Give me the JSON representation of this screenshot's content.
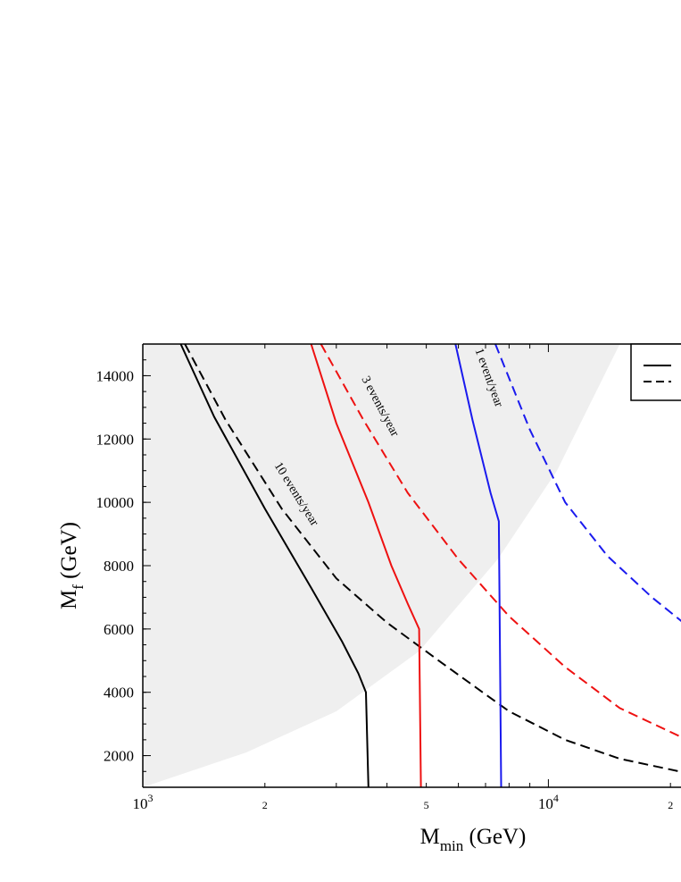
{
  "chart_data": {
    "type": "line",
    "xlabel": "M",
    "xlabel_sub": "min",
    "xlabel_unit": " (GeV)",
    "ylabel": "M",
    "ylabel_sub": "f",
    "ylabel_unit": " (GeV)",
    "x_scale": "log",
    "xlim": [
      1000,
      22000
    ],
    "ylim": [
      1000,
      15000
    ],
    "x_ticks": [
      {
        "value": 1000,
        "base": "10",
        "exp": "3"
      },
      {
        "value": 2000,
        "label": "2"
      },
      {
        "value": 5000,
        "label": "5"
      },
      {
        "value": 10000,
        "base": "10",
        "exp": "4"
      },
      {
        "value": 20000,
        "label": "2"
      }
    ],
    "y_ticks": [
      2000,
      4000,
      6000,
      8000,
      10000,
      12000,
      14000
    ],
    "grid": false,
    "legend": {
      "placement": "top-right",
      "entries": [
        {
          "style": "solid",
          "label": ""
        },
        {
          "style": "dashed",
          "label": ""
        }
      ]
    },
    "shaded_region": {
      "color": "#efefef",
      "boundary": [
        {
          "x": 1000,
          "y": 1000
        },
        {
          "x": 1800,
          "y": 2100
        },
        {
          "x": 3000,
          "y": 3400
        },
        {
          "x": 4800,
          "y": 5300
        },
        {
          "x": 7500,
          "y": 8200
        },
        {
          "x": 10500,
          "y": 11000
        },
        {
          "x": 15000,
          "y": 15000
        }
      ]
    },
    "series": [
      {
        "color": "#000000",
        "style": "solid",
        "points": [
          {
            "x": 1240,
            "y": 15000
          },
          {
            "x": 1500,
            "y": 12700
          },
          {
            "x": 2000,
            "y": 9800
          },
          {
            "x": 2600,
            "y": 7300
          },
          {
            "x": 3100,
            "y": 5600
          },
          {
            "x": 3400,
            "y": 4600
          },
          {
            "x": 3550,
            "y": 4000
          },
          {
            "x": 3600,
            "y": 1000
          }
        ]
      },
      {
        "color": "#000000",
        "style": "dashed",
        "points": [
          {
            "x": 1270,
            "y": 15000
          },
          {
            "x": 1600,
            "y": 12600
          },
          {
            "x": 2200,
            "y": 9800
          },
          {
            "x": 3000,
            "y": 7600
          },
          {
            "x": 4000,
            "y": 6200
          },
          {
            "x": 5500,
            "y": 4900
          },
          {
            "x": 8000,
            "y": 3400
          },
          {
            "x": 11000,
            "y": 2500
          },
          {
            "x": 15000,
            "y": 1900
          },
          {
            "x": 22000,
            "y": 1450
          }
        ]
      },
      {
        "color": "#ee1111",
        "style": "solid",
        "points": [
          {
            "x": 2600,
            "y": 15000
          },
          {
            "x": 3000,
            "y": 12500
          },
          {
            "x": 3600,
            "y": 10000
          },
          {
            "x": 4100,
            "y": 8000
          },
          {
            "x": 4500,
            "y": 6800
          },
          {
            "x": 4800,
            "y": 6000
          },
          {
            "x": 4850,
            "y": 1000
          }
        ]
      },
      {
        "color": "#ee1111",
        "style": "dashed",
        "points": [
          {
            "x": 2750,
            "y": 15000
          },
          {
            "x": 3500,
            "y": 12600
          },
          {
            "x": 4500,
            "y": 10300
          },
          {
            "x": 6000,
            "y": 8200
          },
          {
            "x": 8000,
            "y": 6400
          },
          {
            "x": 11000,
            "y": 4800
          },
          {
            "x": 15000,
            "y": 3500
          },
          {
            "x": 22000,
            "y": 2500
          }
        ]
      },
      {
        "color": "#1a1aee",
        "style": "solid",
        "points": [
          {
            "x": 5900,
            "y": 15000
          },
          {
            "x": 6500,
            "y": 12600
          },
          {
            "x": 7200,
            "y": 10300
          },
          {
            "x": 7550,
            "y": 9400
          },
          {
            "x": 7650,
            "y": 1000
          }
        ]
      },
      {
        "color": "#1a1aee",
        "style": "dashed",
        "points": [
          {
            "x": 7400,
            "y": 15000
          },
          {
            "x": 9000,
            "y": 12300
          },
          {
            "x": 11000,
            "y": 10000
          },
          {
            "x": 14000,
            "y": 8300
          },
          {
            "x": 18000,
            "y": 7000
          },
          {
            "x": 22000,
            "y": 6100
          }
        ]
      }
    ],
    "annotations": [
      {
        "text": "10 events/year",
        "x": 2350,
        "y": 10200,
        "angle": 58
      },
      {
        "text": "3 events/year",
        "x": 3780,
        "y": 12980,
        "angle": 62
      },
      {
        "text": "1 event/year",
        "x": 7000,
        "y": 13900,
        "angle": 70
      }
    ]
  }
}
